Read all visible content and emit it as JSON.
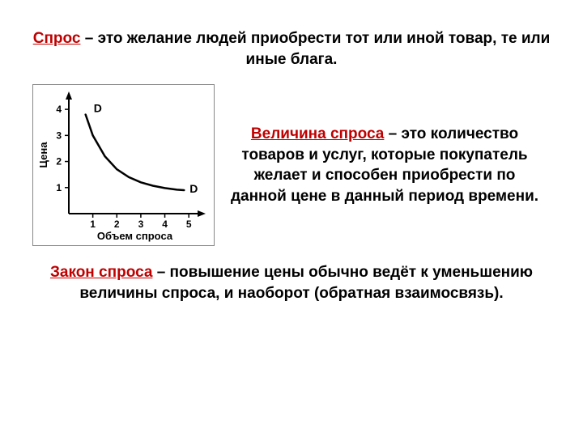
{
  "para1": {
    "term": "Спрос",
    "rest": " – это желание людей приобрести тот или иной товар, те или иные блага."
  },
  "para2": {
    "term": "Величина спроса",
    "rest": " – это количество товаров и услуг, которые покупатель желает и способен приобрести по данной цене в данный период времени."
  },
  "para3": {
    "term": "Закон спроса",
    "rest": " – повышение цены обычно ведёт к уменьшению величины спроса, и наоборот (обратная взаимосвязь)."
  },
  "chart": {
    "type": "line",
    "xlabel": "Объем спроса",
    "ylabel": "Цена",
    "xlim": [
      0,
      5.5
    ],
    "ylim": [
      0,
      4.5
    ],
    "xticks": [
      1,
      2,
      3,
      4,
      5
    ],
    "yticks": [
      1,
      2,
      3,
      4
    ],
    "curve": [
      {
        "x": 0.7,
        "y": 3.8
      },
      {
        "x": 1.0,
        "y": 3.0
      },
      {
        "x": 1.5,
        "y": 2.2
      },
      {
        "x": 2.0,
        "y": 1.7
      },
      {
        "x": 2.5,
        "y": 1.4
      },
      {
        "x": 3.0,
        "y": 1.2
      },
      {
        "x": 3.5,
        "y": 1.07
      },
      {
        "x": 4.0,
        "y": 0.98
      },
      {
        "x": 4.5,
        "y": 0.92
      },
      {
        "x": 4.8,
        "y": 0.9
      }
    ],
    "label_start": "D",
    "label_end": "D",
    "line_color": "#000000",
    "line_width": 2.5,
    "axis_color": "#000000",
    "background": "#ffffff",
    "label_fontsize": 13,
    "tick_fontsize": 12
  }
}
